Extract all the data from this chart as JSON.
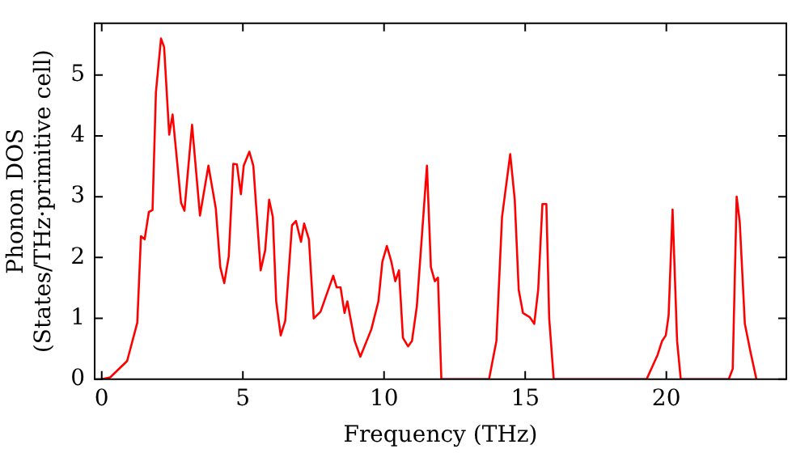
{
  "chart_data": {
    "type": "line",
    "xlabel": "Frequency (THz)",
    "ylabel": "Phonon DOS\n(States/THz·primitive cell)",
    "marker": "none",
    "line_style": "solid",
    "grid": false,
    "legend": false,
    "xlim": [
      -0.25,
      24.25
    ],
    "ylim": [
      0,
      5.85
    ],
    "xticks": [
      0,
      5,
      10,
      15,
      20
    ],
    "yticks": [
      0,
      1,
      2,
      3,
      4,
      5
    ],
    "series": [
      {
        "color": "#ff0000",
        "x": [
          0,
          0.3,
          0.9,
          1.26,
          1.39,
          1.52,
          1.67,
          1.8,
          1.92,
          2.1,
          2.21,
          2.39,
          2.51,
          2.81,
          2.93,
          3.2,
          3.48,
          3.78,
          4.04,
          4.2,
          4.34,
          4.5,
          4.66,
          4.79,
          4.93,
          5.03,
          5.23,
          5.37,
          5.63,
          5.79,
          5.93,
          6.06,
          6.18,
          6.34,
          6.5,
          6.74,
          6.88,
          7.06,
          7.17,
          7.34,
          7.51,
          7.75,
          8.2,
          8.32,
          8.46,
          8.6,
          8.7,
          8.96,
          9.16,
          9.55,
          9.8,
          9.94,
          10.1,
          10.26,
          10.4,
          10.53,
          10.67,
          10.85,
          10.99,
          11.16,
          11.52,
          11.66,
          11.8,
          11.91,
          12.03,
          13.72,
          13.98,
          14.18,
          14.47,
          14.63,
          14.77,
          14.92,
          15.16,
          15.32,
          15.46,
          15.61,
          15.75,
          15.85,
          16.01,
          19.3,
          19.69,
          19.85,
          19.98,
          20.08,
          20.22,
          20.38,
          20.51,
          22.21,
          22.35,
          22.49,
          22.6,
          22.78,
          22.98,
          23.19
        ],
        "values": [
          0,
          0.03,
          0.3,
          0.93,
          2.35,
          2.3,
          2.75,
          2.78,
          4.72,
          5.6,
          5.46,
          4.02,
          4.35,
          2.9,
          2.77,
          4.18,
          2.69,
          3.51,
          2.81,
          1.84,
          1.58,
          2.02,
          3.54,
          3.53,
          3.04,
          3.51,
          3.74,
          3.51,
          1.79,
          2.12,
          2.95,
          2.67,
          1.28,
          0.72,
          0.96,
          2.53,
          2.6,
          2.26,
          2.56,
          2.3,
          1.0,
          1.11,
          1.7,
          1.51,
          1.51,
          1.09,
          1.28,
          0.63,
          0.37,
          0.82,
          1.28,
          1.93,
          2.19,
          1.93,
          1.61,
          1.79,
          0.68,
          0.54,
          0.63,
          1.19,
          3.51,
          1.84,
          1.61,
          1.67,
          0,
          0,
          0.63,
          2.67,
          3.7,
          2.95,
          1.47,
          1.09,
          1.02,
          0.91,
          1.47,
          2.88,
          2.88,
          1.0,
          0,
          0,
          0.4,
          0.63,
          0.72,
          1.05,
          2.79,
          0.63,
          0,
          0,
          0.17,
          3.0,
          2.58,
          0.91,
          0.45,
          0
        ]
      }
    ]
  }
}
